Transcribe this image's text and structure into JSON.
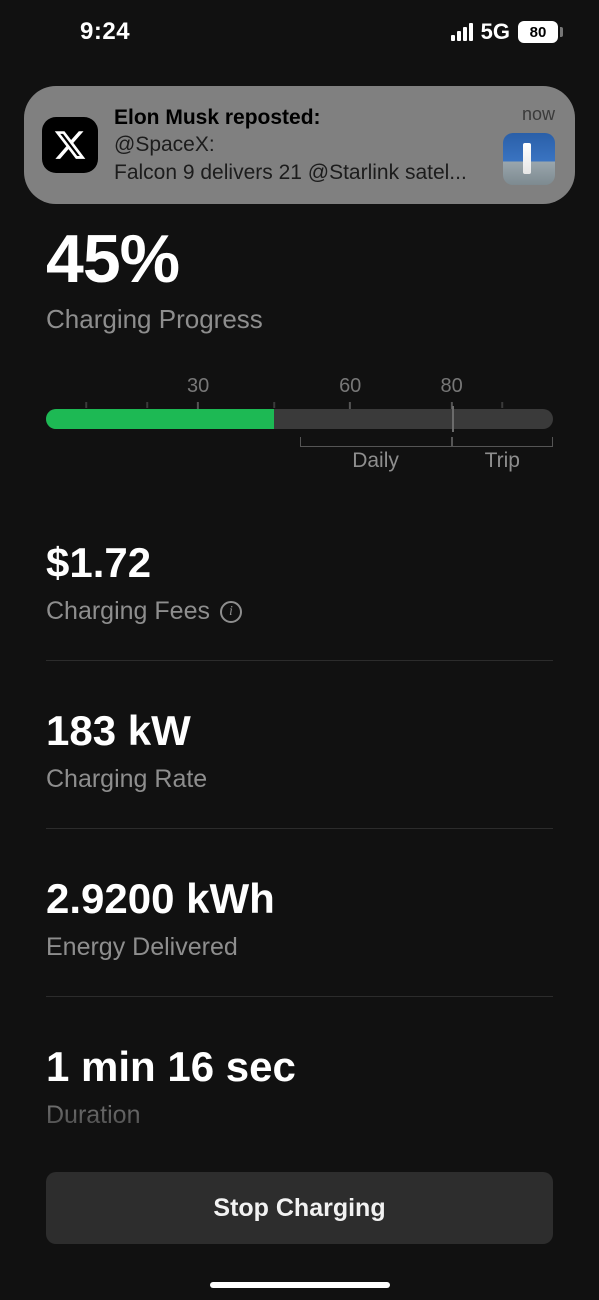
{
  "status_bar": {
    "time": "9:24",
    "network": "5G",
    "battery_pct": "80"
  },
  "notification": {
    "app": "X",
    "title": "Elon Musk reposted:",
    "handle": "@SpaceX:",
    "body": "Falcon 9 delivers 21 @Starlink satel...",
    "time": "now"
  },
  "progress": {
    "value_text": "45%",
    "label": "Charging Progress",
    "percent": 45,
    "fill_color": "#1db954",
    "track_color": "#3a3a3a",
    "ticks": [
      {
        "pos": 8,
        "label": "",
        "minor": true
      },
      {
        "pos": 20,
        "label": "",
        "minor": true
      },
      {
        "pos": 30,
        "label": "30",
        "minor": false
      },
      {
        "pos": 45,
        "label": "",
        "minor": true
      },
      {
        "pos": 60,
        "label": "60",
        "minor": false
      },
      {
        "pos": 80,
        "label": "80",
        "minor": false
      },
      {
        "pos": 90,
        "label": "",
        "minor": true
      }
    ],
    "limits": {
      "daily": {
        "pos": 60,
        "label": "Daily",
        "range_start": 50,
        "range_end": 80
      },
      "trip": {
        "pos": 90,
        "label": "Trip",
        "range_start": 80,
        "range_end": 100
      }
    },
    "divider_at": 80
  },
  "stats": {
    "fees": {
      "value": "$1.72",
      "label": "Charging Fees",
      "info": true
    },
    "rate": {
      "value": "183 kW",
      "label": "Charging Rate"
    },
    "energy": {
      "value": "2.9200 kWh",
      "label": "Energy Delivered"
    },
    "duration": {
      "value": "1 min 16 sec",
      "label": "Duration"
    }
  },
  "button": {
    "stop": "Stop Charging"
  },
  "colors": {
    "bg": "#111111",
    "label": "#8e8e8e",
    "divider": "#2c2c2c",
    "button_bg": "#2d2d2d"
  }
}
